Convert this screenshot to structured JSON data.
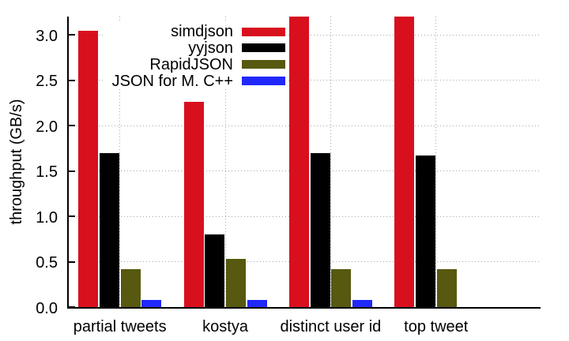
{
  "chart_data": {
    "type": "bar",
    "title": "",
    "xlabel": "",
    "ylabel": "throughput (GB/s)",
    "ylim": [
      0,
      3.2
    ],
    "ytick_step": 0.5,
    "ytick_labels": [
      "0.0",
      "0.5",
      "1.0",
      "1.5",
      "2.0",
      "2.5",
      "3.0"
    ],
    "categories": [
      "partial tweets",
      "kostya",
      "distinct user id",
      "top tweet"
    ],
    "series": [
      {
        "name": "simdjson",
        "color": "#d8101e",
        "values": [
          3.04,
          2.26,
          3.2,
          3.2
        ]
      },
      {
        "name": "yyjson",
        "color": "#000000",
        "values": [
          1.7,
          0.8,
          1.7,
          1.67
        ]
      },
      {
        "name": "RapidJSON",
        "color": "#56590f",
        "values": [
          0.42,
          0.53,
          0.42,
          0.42
        ]
      },
      {
        "name": "JSON for M. C++",
        "color": "#2028fa",
        "values": [
          0.08,
          0.08,
          0.08,
          null
        ]
      }
    ],
    "grid": true,
    "grid_style": "dotted",
    "grid_color": "#a6a6a6",
    "axis_color": "#000000",
    "background": "#ffffff",
    "legend_position": "top-inside-left-of-center",
    "legend_order": [
      "simdjson",
      "yyjson",
      "RapidJSON",
      "JSON for M. C++"
    ]
  }
}
